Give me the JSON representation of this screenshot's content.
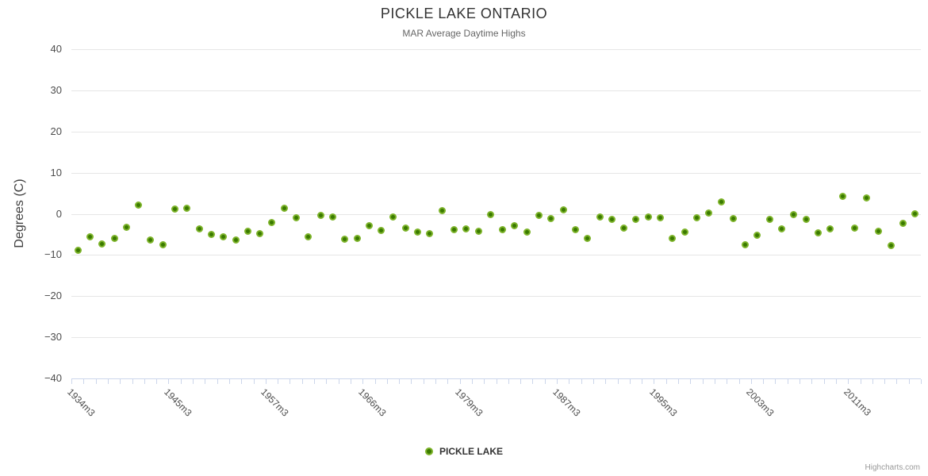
{
  "chart_data": {
    "type": "scatter",
    "title": "PICKLE LAKE ONTARIO",
    "subtitle": "MAR Average Daytime Highs",
    "xlabel": "",
    "ylabel": "Degrees (C)",
    "ylim": [
      -40,
      40
    ],
    "y_ticks": [
      40,
      30,
      20,
      10,
      0,
      -10,
      -20,
      -30,
      -40
    ],
    "grid": true,
    "legend_position": "bottom",
    "n_points": 70,
    "x_tick_labels": [
      {
        "index": 0,
        "label": "1934m3"
      },
      {
        "index": 8,
        "label": "1945m3"
      },
      {
        "index": 16,
        "label": "1957m3"
      },
      {
        "index": 24,
        "label": "1966m3"
      },
      {
        "index": 32,
        "label": "1979m3"
      },
      {
        "index": 40,
        "label": "1987m3"
      },
      {
        "index": 48,
        "label": "1995m3"
      },
      {
        "index": 56,
        "label": "2003m3"
      },
      {
        "index": 64,
        "label": "2011m3"
      }
    ],
    "marker": {
      "outer": "#7db32a",
      "inner": "#3a7a00"
    },
    "series": [
      {
        "name": "PICKLE LAKE",
        "values": [
          -8.7,
          -5.5,
          -7.3,
          -5.9,
          -3.2,
          2.2,
          -6.2,
          -7.5,
          1.3,
          1.5,
          -3.6,
          -5.0,
          -5.4,
          -6.3,
          -4.2,
          -4.8,
          -2.1,
          1.4,
          -0.8,
          -5.4,
          -0.3,
          -0.7,
          -6.1,
          -5.8,
          -2.8,
          -3.9,
          -0.6,
          -3.4,
          -4.4,
          -4.7,
          0.9,
          -3.7,
          -3.6,
          -4.2,
          0.0,
          -3.8,
          -2.8,
          -4.4,
          -0.3,
          -1.1,
          1.1,
          -3.7,
          -5.9,
          -0.7,
          -1.3,
          -3.4,
          -1.2,
          -0.7,
          -0.9,
          -5.9,
          -4.4,
          -0.8,
          0.3,
          3.0,
          -1.1,
          -7.4,
          -5.1,
          -1.3,
          -3.6,
          -0.1,
          -1.3,
          -4.5,
          -3.6,
          4.3,
          -3.4,
          3.9,
          -4.2,
          -7.7,
          -2.2,
          0.1
        ]
      }
    ],
    "credits": "Highcharts.com",
    "colors": {
      "grid": "#e6e6e6",
      "axis_line": "#ccd6eb",
      "title": "#333333",
      "subtitle": "#666666"
    }
  }
}
